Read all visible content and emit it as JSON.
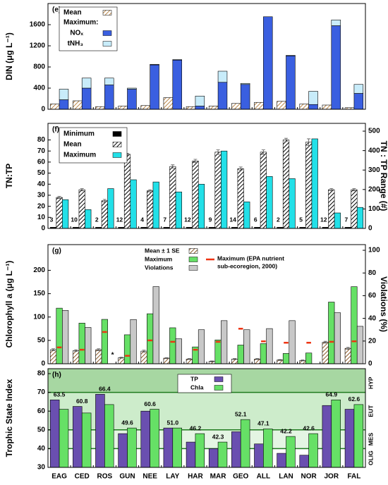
{
  "chart_data": [
    {
      "type": "bar",
      "panel_label": "(e)",
      "ylabel": "DIN (μg L⁻¹)",
      "ylim": [
        0,
        2000
      ],
      "yticks": [
        0,
        400,
        800,
        1200,
        1600
      ],
      "legend_heading": "Maximum:",
      "series": [
        {
          "name": "Mean",
          "color": "#b8864a",
          "pattern": "hatch",
          "values": [
            100,
            160,
            50,
            60,
            70,
            220,
            50,
            60,
            110,
            130,
            150,
            100,
            80,
            30
          ]
        },
        {
          "name": "NOₓ",
          "color": "#3a5fe0",
          "values": [
            180,
            400,
            460,
            380,
            840,
            930,
            60,
            510,
            470,
            1750,
            1010,
            90,
            1580,
            300
          ]
        },
        {
          "name": "tNH₃",
          "color": "#c8ecfa",
          "stacked": true,
          "values": [
            200,
            190,
            130,
            20,
            10,
            10,
            190,
            210,
            20,
            0,
            10,
            250,
            110,
            170
          ]
        }
      ]
    },
    {
      "type": "bar",
      "panel_label": "(f)",
      "ylabel": "TN:TP",
      "y2label": "TN : TP Range (#)",
      "ylim": [
        0,
        95
      ],
      "yticks": [
        0,
        10,
        20,
        30,
        40,
        50,
        60,
        70,
        80
      ],
      "y2lim": [
        0,
        540
      ],
      "y2ticks": [
        0,
        100,
        200,
        300,
        400,
        500
      ],
      "series": [
        {
          "name": "Minimum",
          "color": "#000000",
          "values": [
            1,
            1,
            1,
            1,
            1,
            1,
            1,
            1,
            1,
            1,
            1,
            1,
            1,
            1
          ]
        },
        {
          "name": "Mean",
          "color": "#000000",
          "pattern": "hatch",
          "values": [
            28,
            35,
            25,
            67,
            34,
            56,
            61,
            69,
            54,
            69,
            80,
            78,
            35,
            35
          ],
          "errors": [
            1,
            1,
            1.2,
            1,
            1,
            1.5,
            1.5,
            2,
            1.5,
            2,
            1.5,
            3,
            1,
            1
          ]
        },
        {
          "name": "Maximum",
          "color": "#22e0e8",
          "values": [
            26,
            17,
            36,
            44,
            42,
            33,
            40,
            70,
            24,
            47,
            45,
            81,
            14,
            19
          ]
        }
      ],
      "annotations": {
        "values": [
          3,
          10,
          2,
          12,
          4,
          7,
          12,
          9,
          14,
          6,
          2,
          5,
          12,
          7
        ]
      }
    },
    {
      "type": "bar",
      "panel_label": "(g)",
      "ylabel": "Chlorophyll a (μg L⁻¹)",
      "y2label": "Violations (%)",
      "ylim": [
        0,
        255
      ],
      "yticks": [
        0,
        50,
        100,
        150,
        200
      ],
      "y2lim": [
        0,
        105
      ],
      "y2ticks": [
        0,
        20,
        40,
        60,
        80,
        100
      ],
      "series": [
        {
          "name": "Mean ± 1 SE",
          "color": "#8a5a2a",
          "pattern": "hatch",
          "values": [
            30,
            28,
            30,
            13,
            27,
            12,
            10,
            5,
            10,
            10,
            8,
            7,
            46,
            33
          ],
          "errors": [
            2,
            2,
            2,
            1,
            2,
            1,
            1,
            1,
            1,
            1,
            1,
            1,
            2,
            2
          ]
        },
        {
          "name": "Maximum",
          "color": "#66e066",
          "values": [
            119,
            87,
            95,
            62,
            107,
            77,
            36,
            51,
            40,
            43,
            22,
            23,
            132,
            165
          ]
        },
        {
          "name_lines": [
            "Maximum (EPA nutrient",
            "sub-ecoregion, 2000)"
          ],
          "color": "#ee3311",
          "marker": "dash",
          "values": [
            35,
            30,
            68,
            17,
            50,
            47,
            30,
            47,
            75,
            48,
            45,
            45,
            47,
            48
          ]
        },
        {
          "name": "Violations",
          "color": "#c8c8c8",
          "axis": "y2",
          "values": [
            47,
            32,
            null,
            39,
            68,
            22,
            30,
            38,
            30,
            31,
            38,
            null,
            45,
            33
          ]
        }
      ],
      "notes": [
        {
          "text": "*",
          "category": "ROS"
        }
      ]
    },
    {
      "type": "bar",
      "panel_label": "(h)",
      "ylabel": "Trophic State Index",
      "ylim": [
        30,
        80
      ],
      "yticks": [
        30,
        40,
        50,
        60,
        70,
        80
      ],
      "categories": [
        "EAG",
        "CED",
        "ROS",
        "GUN",
        "NEE",
        "LAY",
        "HAR",
        "MAR",
        "GEO",
        "ALL",
        "LAN",
        "NOR",
        "JOR",
        "FAL"
      ],
      "bands": [
        {
          "label": "HYP",
          "from": 70,
          "to": 80,
          "color": "#a7d7a2"
        },
        {
          "label": "EUT",
          "from": 50,
          "to": 70,
          "color": "#cdeccb"
        },
        {
          "label": "MES",
          "from": 40,
          "to": 50,
          "color": "#e4f5e3"
        },
        {
          "label": "OLIG",
          "from": 30,
          "to": 40,
          "color": "#ffffff"
        }
      ],
      "lines": [
        40,
        50,
        70
      ],
      "line_color": "#1e7a1e",
      "series": [
        {
          "name": "TP",
          "color": "#6a4fb0",
          "values": [
            66,
            62.5,
            69,
            48,
            60,
            51,
            43.5,
            40,
            49,
            42.5,
            37.5,
            36.5,
            63,
            61
          ]
        },
        {
          "name": "Chla",
          "color": "#66e066",
          "values": [
            61,
            59,
            63.5,
            51,
            61,
            51,
            48,
            43.5,
            55.5,
            50.5,
            46.5,
            48,
            66,
            63.5
          ]
        }
      ],
      "tsi": {
        "values": [
          63.5,
          60.8,
          66.4,
          49.6,
          60.6,
          51.0,
          46.2,
          42.3,
          52.1,
          47.1,
          42.2,
          42.6,
          64.9,
          62.6
        ],
        "value_labels": [
          "63.5",
          "60.8",
          "66.4",
          "49.6",
          "60.6",
          "51.0",
          "46.2",
          "42.3",
          "52.1",
          "47.1",
          "42.2",
          "42.6",
          "64.9",
          "62.6"
        ]
      }
    }
  ]
}
